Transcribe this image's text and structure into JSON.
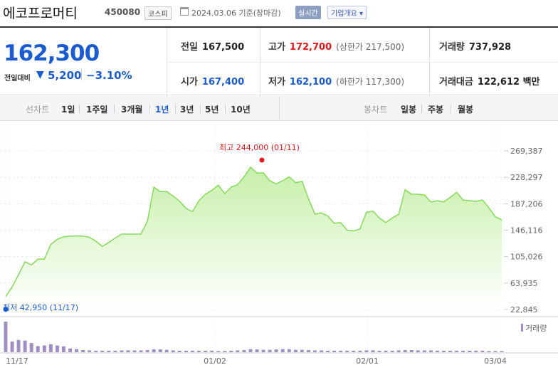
{
  "header": {
    "name": "에코프로머티",
    "code": "450080",
    "market": "코스피",
    "basis": "2024.03.06 기준(장마감)",
    "live_label": "실시간",
    "company_label": "기업개요 ▾"
  },
  "quote": {
    "price": "162,300",
    "change_label": "전일대비",
    "change_arrow": "▼",
    "change": "5,200",
    "change_rate": "−3.10%",
    "prev_label": "전일",
    "prev": "167,500",
    "open_label": "시가",
    "open": "167,400",
    "high_label": "고가",
    "high": "172,700",
    "upper_limit": "(상한가 217,500)",
    "low_label": "저가",
    "low": "162,100",
    "lower_limit": "(하한가 117,300)",
    "volume_label": "거래량",
    "volume": "737,928",
    "amount_label": "거래대금",
    "amount": "122,612 백만"
  },
  "period_bar": {
    "line_chart_label": "선차트",
    "line_periods": [
      "1일",
      "1주일",
      "3개월",
      "1년",
      "3년",
      "5년",
      "10년"
    ],
    "active_period": "1년",
    "candle_chart_label": "봉차트",
    "candle_periods": [
      "일봉",
      "주봉",
      "월봉"
    ]
  },
  "colors": {
    "up": "#e0161b",
    "down": "#1a5bd1",
    "line": "#86d95c",
    "fill_top": "#c6efa9",
    "volume_bar": "#9f8ec3"
  },
  "chart_data": {
    "type": "area",
    "y_ticks": [
      "269,387",
      "228,297",
      "187,206",
      "146,116",
      "105,026",
      "63,935",
      "22,845"
    ],
    "ylim": [
      22845,
      269387
    ],
    "x_ticks": [
      "11/17",
      "01/02",
      "02/01",
      "03/04"
    ],
    "high_annotation": "최고 244,000 (01/11)",
    "low_annotation": "최저 42,950 (11/17)",
    "volume_label": "거래량",
    "price": [
      42950,
      58000,
      77000,
      97000,
      92000,
      101000,
      101000,
      124000,
      132000,
      136000,
      137000,
      137000,
      137000,
      135000,
      129000,
      121000,
      127000,
      134000,
      140000,
      140000,
      140000,
      140000,
      160000,
      213000,
      206000,
      206000,
      199000,
      191000,
      180000,
      175000,
      192000,
      202000,
      208000,
      216000,
      203000,
      213000,
      217000,
      229000,
      244000,
      235000,
      235000,
      223000,
      218000,
      223000,
      229000,
      220000,
      222000,
      195000,
      171000,
      173000,
      168000,
      157000,
      158000,
      146000,
      145000,
      148000,
      174000,
      176000,
      165000,
      158000,
      165000,
      171000,
      209000,
      202000,
      202000,
      201000,
      190000,
      192000,
      190000,
      197000,
      205000,
      193000,
      192000,
      191000,
      193000,
      181000,
      167000,
      162300
    ],
    "volume": [
      100,
      35,
      40,
      38,
      30,
      20,
      22,
      26,
      22,
      19,
      12,
      10,
      7,
      6,
      5,
      5,
      5,
      5,
      6,
      6,
      6,
      6,
      7,
      9,
      9,
      8,
      6,
      5,
      5,
      5,
      5,
      5,
      5,
      4,
      4,
      5,
      6,
      7,
      10,
      9,
      8,
      8,
      9,
      10,
      10,
      8,
      8,
      7,
      6,
      6,
      5,
      5,
      5,
      5,
      5,
      5,
      6,
      6,
      5,
      5,
      5,
      6,
      7,
      7,
      6,
      6,
      6,
      5,
      5,
      5,
      5,
      5,
      5,
      5,
      5,
      4,
      4,
      4
    ]
  }
}
